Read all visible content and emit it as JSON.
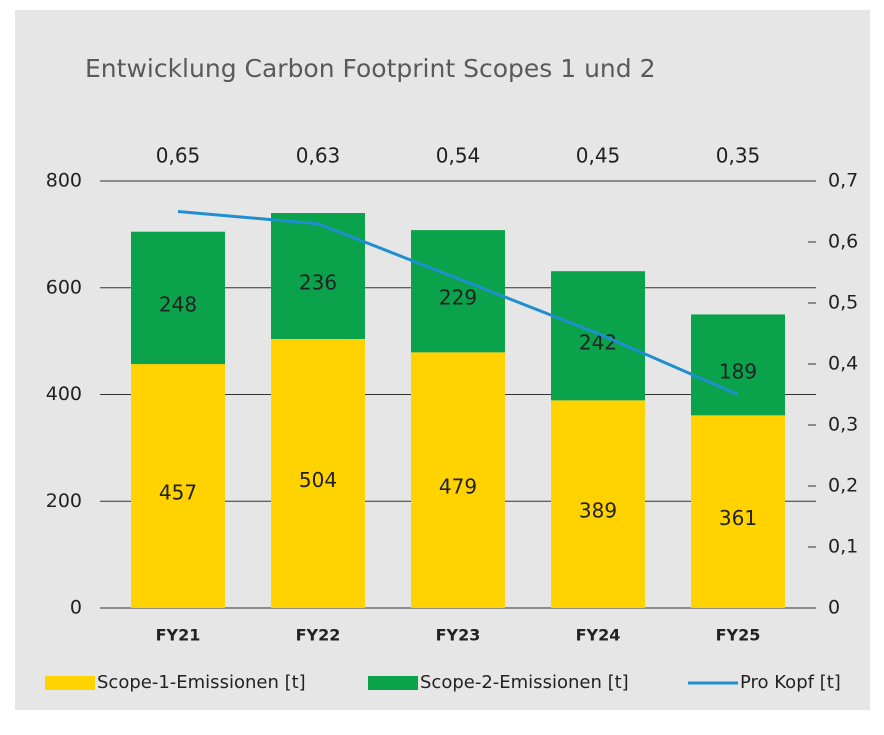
{
  "chart_data": {
    "type": "bar",
    "stacked": true,
    "title": "Entwicklung Carbon Footprint Scopes 1 und 2",
    "categories": [
      "FY21",
      "FY22",
      "FY23",
      "FY24",
      "FY25"
    ],
    "series": [
      {
        "name": "Scope-1-Emissionen [t]",
        "color": "#ffd200",
        "values": [
          457,
          504,
          479,
          389,
          361
        ]
      },
      {
        "name": "Scope-2-Emissionen [t]",
        "color": "#0ba24c",
        "values": [
          248,
          236,
          229,
          242,
          189
        ]
      },
      {
        "name": "Pro Kopf [t]",
        "type": "line",
        "axis": "y2",
        "color": "#1f8fd0",
        "values": [
          0.65,
          0.63,
          0.54,
          0.45,
          0.35
        ],
        "value_labels": [
          "0,65",
          "0,63",
          "0,54",
          "0,45",
          "0,35"
        ]
      }
    ],
    "ylim": [
      0,
      800
    ],
    "yticks": [
      0,
      200,
      400,
      600,
      800
    ],
    "y2lim": [
      0,
      0.7
    ],
    "y2ticks": [
      0,
      {
        "value": 0.1,
        "label": "0,1"
      },
      {
        "value": 0.2,
        "label": "0,2"
      },
      {
        "value": 0.3,
        "label": "0,3"
      },
      {
        "value": 0.4,
        "label": "0,4"
      },
      {
        "value": 0.5,
        "label": "0,5"
      },
      {
        "value": 0.6,
        "label": "0,6"
      },
      {
        "value": 0.7,
        "label": "0,7"
      }
    ],
    "grid": true,
    "legend": "bottom"
  }
}
